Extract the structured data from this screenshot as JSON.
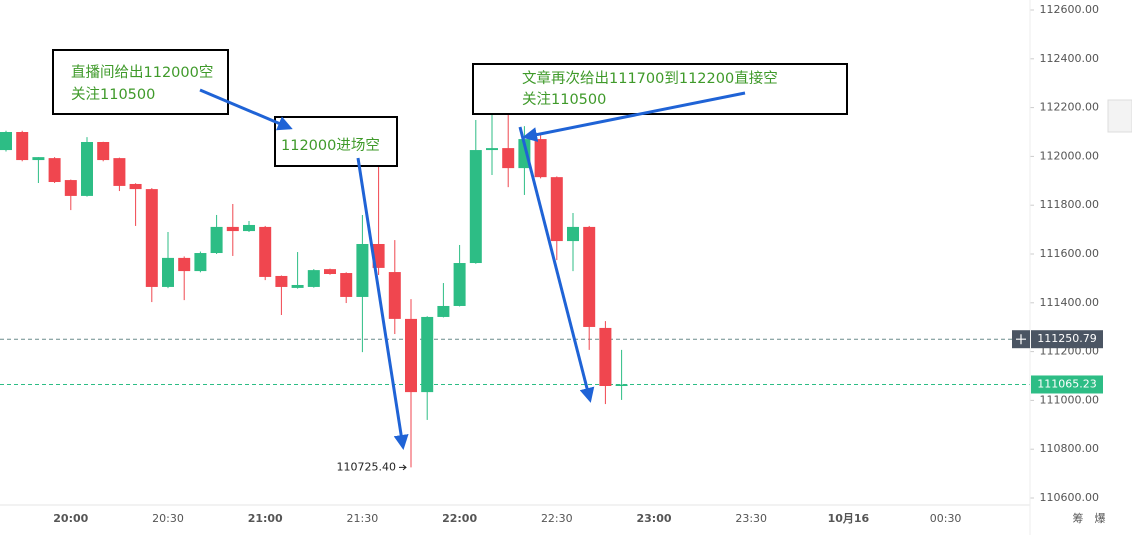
{
  "chart_data": {
    "type": "candlestick",
    "categories": [
      null,
      null,
      null,
      null,
      "20:00",
      null,
      null,
      null,
      null,
      null,
      "20:30",
      null,
      null,
      null,
      null,
      null,
      "21:00",
      null,
      null,
      null,
      null,
      null,
      "21:30",
      null,
      null,
      null,
      null,
      null,
      "22:00",
      null,
      null,
      null,
      null,
      null,
      "22:30",
      null,
      null,
      null,
      null,
      null,
      "23:00",
      null,
      null,
      null,
      null,
      null,
      "23:30",
      null,
      null,
      null,
      null,
      null,
      "10月16",
      null,
      null,
      null,
      null,
      null,
      "00:30",
      null,
      null,
      null,
      null
    ],
    "open": [
      112026,
      112100,
      111985,
      111993,
      111903,
      111838,
      112059,
      111993,
      111887,
      111866,
      111465,
      111584,
      111530,
      111604,
      111711,
      111694,
      111711,
      111510,
      111461,
      111465,
      111538,
      111522,
      111424,
      111641,
      111526,
      111334,
      111034,
      111342,
      111387,
      111563,
      112026,
      112034,
      111952,
      112071,
      111915,
      111653,
      111711,
      111297,
      111059,
      null,
      null,
      null,
      null,
      null,
      null,
      null,
      null,
      null,
      null,
      null,
      null,
      null,
      null,
      null,
      null,
      null,
      null,
      null,
      null,
      null,
      null,
      null,
      null
    ],
    "high": [
      112105,
      112105,
      111997,
      111997,
      111905,
      112079,
      112060,
      111995,
      111890,
      111870,
      111690,
      111590,
      111610,
      111760,
      111805,
      111735,
      111715,
      111512,
      111608,
      111538,
      111540,
      111525,
      111760,
      112014,
      111657,
      111415,
      111345,
      111481,
      111637,
      112149,
      112239,
      112190,
      112124,
      112088,
      111918,
      111768,
      111715,
      111325,
      111207,
      null,
      null,
      null,
      null,
      null,
      null,
      null,
      null,
      null,
      null,
      null,
      null,
      null,
      null,
      null,
      null,
      null,
      null,
      null,
      null,
      null,
      null,
      null,
      null
    ],
    "low": [
      112020,
      111980,
      111891,
      111891,
      111780,
      111835,
      111980,
      111858,
      111715,
      111403,
      111460,
      111411,
      111525,
      111600,
      111592,
      111690,
      111493,
      111350,
      111458,
      111462,
      111515,
      111399,
      111198,
      111514,
      111272,
      110725.4,
      110920,
      111340,
      111385,
      111560,
      111924,
      111874,
      111842,
      111910,
      111575,
      111530,
      111207,
      110985,
      111002,
      null,
      null,
      null,
      null,
      null,
      null,
      null,
      null,
      null,
      null,
      null,
      null,
      null,
      null,
      null,
      null,
      null,
      null,
      null,
      null,
      null,
      null,
      null,
      null
    ],
    "close": [
      112100,
      111985,
      111997,
      111895,
      111838,
      112059,
      111985,
      111879,
      111866,
      111465,
      111584,
      111530,
      111604,
      111711,
      111694,
      111719,
      111506,
      111465,
      111473,
      111534,
      111518,
      111424,
      111641,
      111543,
      111334,
      111034,
      111342,
      111387,
      111563,
      112026,
      112034,
      111952,
      112071,
      111915,
      111653,
      111711,
      111301,
      111059,
      111065.23,
      null,
      null,
      null,
      null,
      null,
      null,
      null,
      null,
      null,
      null,
      null,
      null,
      null,
      null,
      null,
      null,
      null,
      null,
      null,
      null,
      null,
      null,
      null,
      null
    ],
    "up_color": "#2dbd85",
    "down_color": "#f0464f",
    "ylim": [
      110600,
      112600
    ],
    "yticks": [
      {
        "value": 110600,
        "label": "110600.00"
      },
      {
        "value": 110800,
        "label": "110800.00"
      },
      {
        "value": 111000,
        "label": "111000.00"
      },
      {
        "value": 111200,
        "label": "111200.00"
      },
      {
        "value": 111400,
        "label": "111400.00"
      },
      {
        "value": 111600,
        "label": "111600.00"
      },
      {
        "value": 111800,
        "label": "111800.00"
      },
      {
        "value": 112000,
        "label": "112000.00"
      },
      {
        "value": 112200,
        "label": "112200.00"
      },
      {
        "value": 112400,
        "label": "112400.00"
      },
      {
        "value": 112600,
        "label": "112600.00"
      }
    ],
    "last_price": {
      "value": 111065.23,
      "label": "111065.23"
    },
    "crosshair": {
      "value": 111250.79,
      "label": "111250.79"
    },
    "low_label": {
      "value": 110725.4,
      "label": "110725.40"
    },
    "annotations": [
      {
        "lines": [
          "直播间给出112000空",
          "关注110500"
        ]
      },
      {
        "lines": [
          "112000进场空"
        ]
      },
      {
        "lines": [
          "文章再次给出111700到112200直接空",
          "关注110500"
        ]
      }
    ],
    "footer_buttons": [
      "筹",
      "爆"
    ]
  }
}
